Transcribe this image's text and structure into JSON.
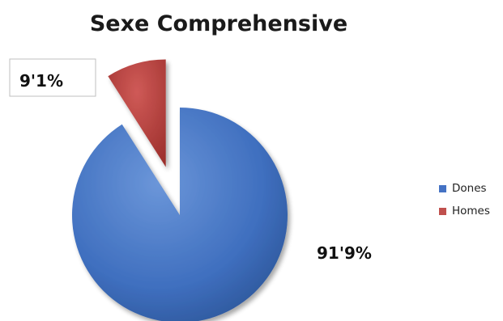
{
  "chart_data": {
    "type": "pie",
    "title": "Sexe Comprehensive",
    "categories": [
      "Dones",
      "Homes"
    ],
    "values": [
      91.9,
      9.1
    ],
    "data_labels": [
      "91'9%",
      "9'1%"
    ],
    "colors": [
      "#4472C4",
      "#C0504D"
    ],
    "exploded": [
      "Homes"
    ],
    "legend": "right"
  }
}
